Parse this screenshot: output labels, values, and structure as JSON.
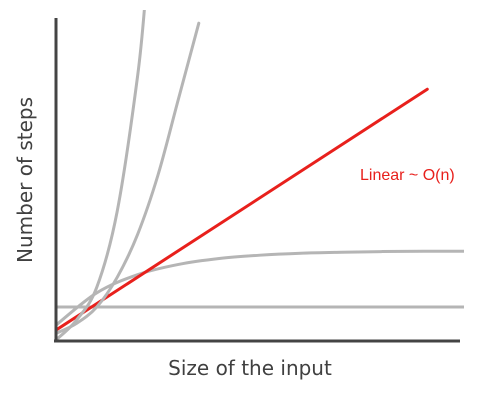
{
  "chart_data": {
    "type": "line",
    "title": "",
    "xlabel": "Size of the input",
    "ylabel": "Number of steps",
    "xlim": [
      0,
      10
    ],
    "ylim": [
      0,
      10
    ],
    "grid": false,
    "axis_color": "#444444",
    "series": [
      {
        "label": "",
        "color": "#b5b5b5",
        "x": [
          0,
          1,
          2,
          3,
          4,
          5,
          6,
          7,
          8,
          9,
          10
        ],
        "y": [
          1.0,
          1.0,
          1.0,
          1.0,
          1.0,
          1.0,
          1.0,
          1.0,
          1.0,
          1.0,
          1.0
        ]
      },
      {
        "label": "",
        "color": "#b5b5b5",
        "x": [
          0,
          1,
          2,
          3,
          4,
          5,
          6,
          7,
          8,
          9,
          10
        ],
        "y": [
          0.45,
          1.43,
          1.98,
          2.29,
          2.47,
          2.57,
          2.63,
          2.66,
          2.68,
          2.69,
          2.69
        ]
      },
      {
        "label": "Linear ~ O(n)",
        "color": "#e8201c",
        "x": [
          0,
          9.1
        ],
        "y": [
          0.3,
          7.6
        ]
      },
      {
        "label": "",
        "color": "#b5b5b5",
        "x": [
          0,
          0.5,
          1.0,
          1.5,
          2.0,
          2.5,
          3.0,
          3.5
        ],
        "y": [
          0.2,
          0.5,
          1.0,
          1.9,
          3.2,
          5.0,
          7.3,
          9.6
        ]
      },
      {
        "label": "",
        "color": "#b5b5b5",
        "x": [
          0,
          0.5,
          1.0,
          1.5,
          2.0,
          2.2
        ],
        "y": [
          0.0,
          0.6,
          1.6,
          3.9,
          8.0,
          10.5
        ]
      }
    ]
  }
}
